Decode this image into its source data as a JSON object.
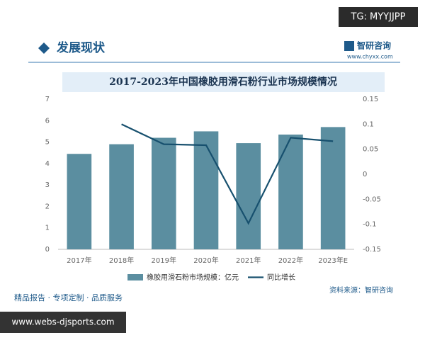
{
  "tag": "TG: MYYJJPP",
  "header": {
    "title": "发展现状",
    "brand": "智研咨询",
    "url": "www.chyxx.com"
  },
  "footer": {
    "services": "精品报告 · 专项定制 · 品质服务",
    "site": "www.webs-djsports.com"
  },
  "chart_data": {
    "type": "bar",
    "title": "2017-2023年中国橡胶用滑石粉行业市场规模情况",
    "source": "资料来源：智研咨询",
    "categories": [
      "2017年",
      "2018年",
      "2019年",
      "2020年",
      "2021年",
      "2022年",
      "2023年E"
    ],
    "series": [
      {
        "name": "橡胶用滑石粉市场规模：亿元",
        "type": "bar",
        "color": "#5b8ea0",
        "values": [
          4.45,
          4.9,
          5.2,
          5.5,
          4.95,
          5.35,
          5.7
        ]
      },
      {
        "name": "同比增长",
        "type": "line",
        "axis": "y2",
        "color": "#17506e",
        "values": [
          null,
          0.1,
          0.06,
          0.058,
          -0.098,
          0.073,
          0.066
        ]
      }
    ],
    "ylim": [
      0,
      7
    ],
    "yticks": [
      0,
      1,
      2,
      3,
      4,
      5,
      6,
      7
    ],
    "y2lim": [
      -0.15,
      0.15
    ],
    "y2ticks": [
      -0.15,
      -0.1,
      -0.05,
      0,
      0.05,
      0.1,
      0.15
    ],
    "grid": false,
    "legend": "bottom"
  }
}
